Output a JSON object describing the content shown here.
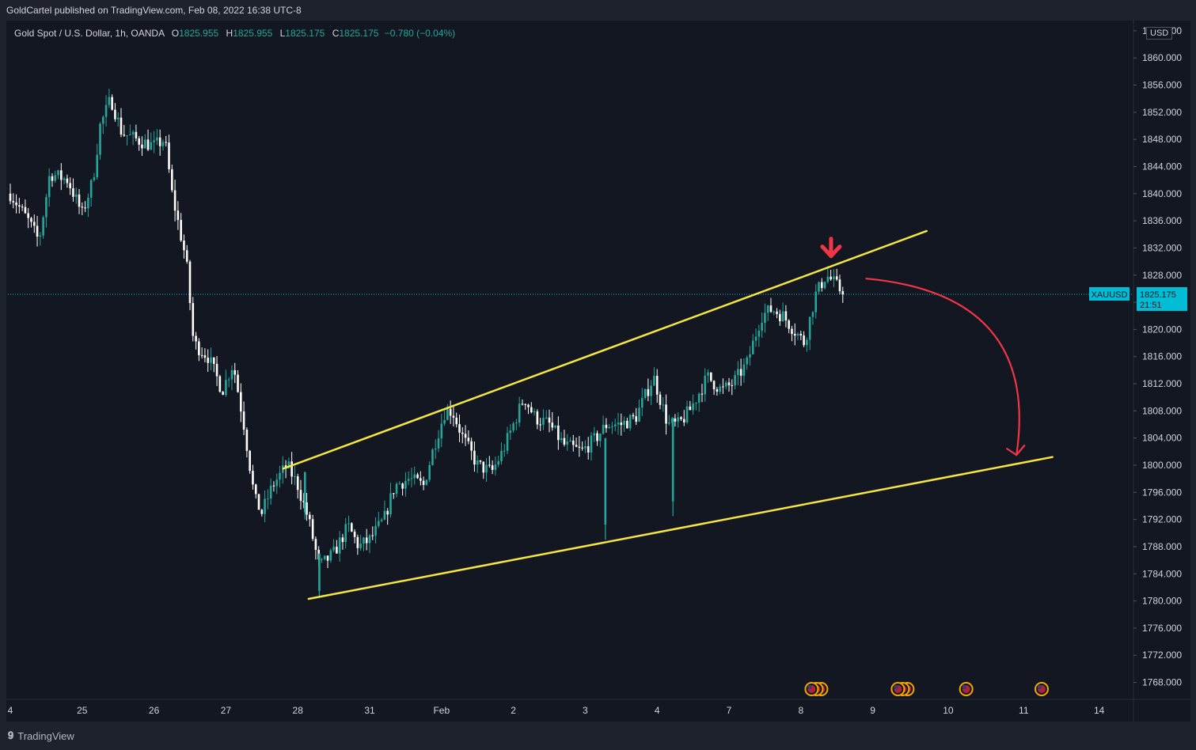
{
  "publisher_line": "GoldCartel published on TradingView.com, Feb 08, 2022 16:38 UTC-8",
  "legend": {
    "title": "Gold Spot / U.S. Dollar, 1h, OANDA",
    "o_label": "O",
    "o_value": "1825.955",
    "h_label": "H",
    "h_value": "1825.955",
    "l_label": "L",
    "l_value": "1825.175",
    "c_label": "C",
    "c_value": "1825.175",
    "change": "−0.780 (−0.04%)"
  },
  "currency": "USD",
  "symbol_tag": "XAUUSD",
  "price_tag": {
    "price": "1825.175",
    "countdown": "21:51"
  },
  "footer_brand": "TradingView",
  "colors": {
    "background": "#131722",
    "up": "#26a69a",
    "down": "#ffffff",
    "trendline": "#f5e642",
    "arrow": "#f23645",
    "price_line": "#00bcd4",
    "axis_text": "#d1d4dc"
  },
  "chart_data": {
    "type": "candlestick",
    "symbol": "XAUUSD",
    "timeframe": "1h",
    "y_ticks": [
      "1864.000",
      "1860.000",
      "1856.000",
      "1852.000",
      "1848.000",
      "1844.000",
      "1840.000",
      "1836.000",
      "1832.000",
      "1828.000",
      "1824.000",
      "1820.000",
      "1816.000",
      "1812.000",
      "1808.000",
      "1804.000",
      "1800.000",
      "1796.000",
      "1792.000",
      "1788.000",
      "1784.000",
      "1780.000",
      "1776.000",
      "1772.000",
      "1768.000"
    ],
    "ylim": [
      1765.5,
      1865.5
    ],
    "x_ticks": [
      {
        "label": "4",
        "pos": 0.0
      },
      {
        "label": "25",
        "pos": 1.0
      },
      {
        "label": "26",
        "pos": 2.0
      },
      {
        "label": "27",
        "pos": 3.0
      },
      {
        "label": "28",
        "pos": 4.0
      },
      {
        "label": "31",
        "pos": 5.0
      },
      {
        "label": "Feb",
        "pos": 6.0
      },
      {
        "label": "2",
        "pos": 7.0
      },
      {
        "label": "3",
        "pos": 8.0
      },
      {
        "label": "4",
        "pos": 9.0
      },
      {
        "label": "7",
        "pos": 10.0
      },
      {
        "label": "8",
        "pos": 11.0
      },
      {
        "label": "9",
        "pos": 12.0
      },
      {
        "label": "10",
        "pos": 13.05
      },
      {
        "label": "11",
        "pos": 14.1
      },
      {
        "label": "14",
        "pos": 15.15
      }
    ],
    "xlim": [
      0,
      15.7
    ],
    "last_price": 1825.175,
    "anchors": [
      [
        0.0,
        1840
      ],
      [
        0.25,
        1836
      ],
      [
        0.4,
        1833
      ],
      [
        0.55,
        1843
      ],
      [
        0.8,
        1842
      ],
      [
        1.0,
        1837
      ],
      [
        1.15,
        1842
      ],
      [
        1.25,
        1850
      ],
      [
        1.4,
        1854
      ],
      [
        1.55,
        1849
      ],
      [
        1.75,
        1848
      ],
      [
        2.0,
        1847
      ],
      [
        2.15,
        1848
      ],
      [
        2.25,
        1840
      ],
      [
        2.45,
        1830
      ],
      [
        2.55,
        1818
      ],
      [
        2.75,
        1816
      ],
      [
        2.95,
        1811
      ],
      [
        3.1,
        1815
      ],
      [
        3.25,
        1806
      ],
      [
        3.4,
        1795
      ],
      [
        3.5,
        1793
      ],
      [
        3.65,
        1797
      ],
      [
        3.85,
        1800
      ],
      [
        4.0,
        1797
      ],
      [
        4.15,
        1792
      ],
      [
        4.3,
        1785
      ],
      [
        4.5,
        1787
      ],
      [
        4.7,
        1791
      ],
      [
        4.85,
        1788
      ],
      [
        5.0,
        1789
      ],
      [
        5.2,
        1792
      ],
      [
        5.35,
        1797
      ],
      [
        5.55,
        1798
      ],
      [
        5.75,
        1797
      ],
      [
        5.9,
        1803
      ],
      [
        6.05,
        1808
      ],
      [
        6.15,
        1808
      ],
      [
        6.3,
        1804
      ],
      [
        6.5,
        1800
      ],
      [
        6.7,
        1799
      ],
      [
        6.85,
        1802
      ],
      [
        7.0,
        1806
      ],
      [
        7.15,
        1810
      ],
      [
        7.3,
        1807
      ],
      [
        7.5,
        1806
      ],
      [
        7.7,
        1803
      ],
      [
        7.95,
        1802
      ],
      [
        8.15,
        1804
      ],
      [
        8.3,
        1806
      ],
      [
        8.5,
        1806
      ],
      [
        8.7,
        1807
      ],
      [
        8.95,
        1813
      ],
      [
        9.15,
        1806
      ],
      [
        9.3,
        1806
      ],
      [
        9.45,
        1808
      ],
      [
        9.7,
        1813
      ],
      [
        9.9,
        1811
      ],
      [
        10.05,
        1812
      ],
      [
        10.25,
        1815
      ],
      [
        10.45,
        1822
      ],
      [
        10.6,
        1823
      ],
      [
        10.75,
        1822
      ],
      [
        10.9,
        1820
      ],
      [
        11.05,
        1818
      ],
      [
        11.2,
        1825
      ],
      [
        11.35,
        1828
      ],
      [
        11.45,
        1827
      ],
      [
        11.6,
        1825.175
      ]
    ],
    "spikes": [
      {
        "pos": 4.1,
        "low": 1792,
        "high": 1799
      },
      {
        "pos": 4.3,
        "low": 1780.5,
        "high": 1787
      },
      {
        "pos": 8.28,
        "low": 1789,
        "high": 1804
      },
      {
        "pos": 9.22,
        "low": 1792.5,
        "high": 1807
      }
    ],
    "trendlines": [
      {
        "name": "upper",
        "from": [
          3.8,
          1799.5
        ],
        "to": [
          12.75,
          1834.5
        ]
      },
      {
        "name": "lower",
        "from": [
          4.15,
          1780.3
        ],
        "to": [
          14.5,
          1801.2
        ]
      }
    ],
    "annotations": [
      {
        "type": "down-arrow",
        "at": [
          11.42,
          1831.5
        ]
      },
      {
        "type": "curved-arrow",
        "from": [
          11.9,
          1827.5
        ],
        "to": [
          14.0,
          1801.5
        ]
      }
    ],
    "event_markers": [
      {
        "pos": 11.15,
        "count": 3
      },
      {
        "pos": 12.35,
        "count": 3
      },
      {
        "pos": 13.3,
        "count": 1
      },
      {
        "pos": 14.35,
        "count": 1
      }
    ]
  }
}
